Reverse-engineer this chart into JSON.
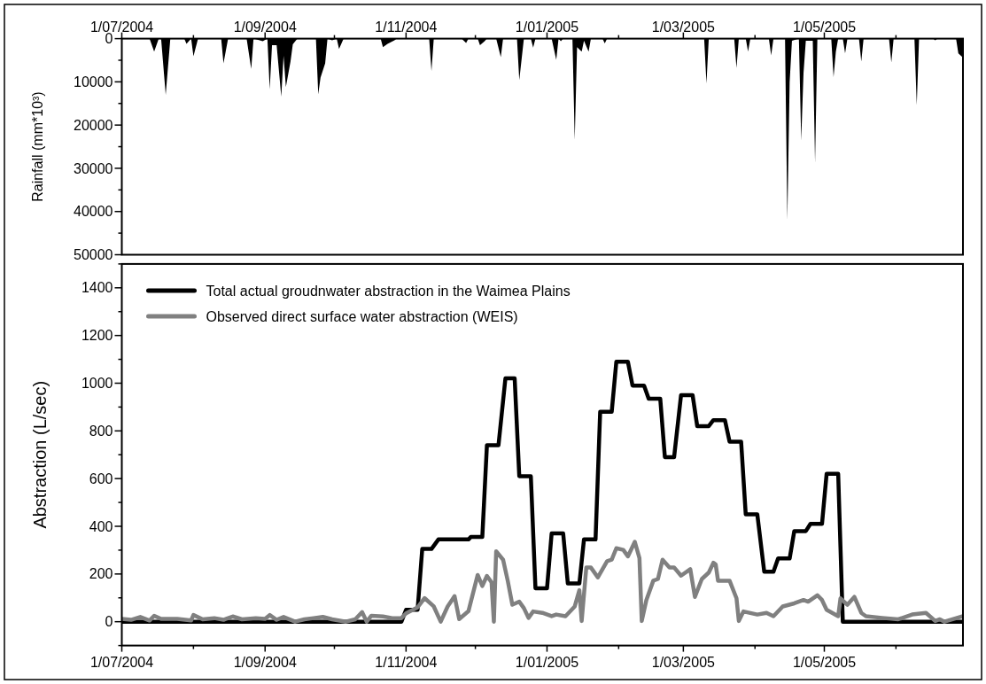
{
  "chart_data": [
    {
      "type": "area",
      "ylabel": "Rainfall (mm*10³)",
      "xlim": [
        "2004-07-01",
        "2005-06-30"
      ],
      "ylim": [
        50000,
        0
      ],
      "yticks": [
        0,
        {
          "value": 5000,
          "label": null
        },
        10000,
        {
          "value": 15000,
          "label": null
        },
        20000,
        {
          "value": 25000,
          "label": null
        },
        30000,
        {
          "value": 35000,
          "label": null
        },
        40000,
        {
          "value": 45000,
          "label": null
        },
        50000
      ],
      "xticks": [
        {
          "value": "2004-07-01",
          "label": "1/07/2004"
        },
        {
          "value": "2004-08-01",
          "label": null
        },
        {
          "value": "2004-09-01",
          "label": "1/09/2004"
        },
        {
          "value": "2004-10-01",
          "label": null
        },
        {
          "value": "2004-11-01",
          "label": "1/11/2004"
        },
        {
          "value": "2004-12-01",
          "label": null
        },
        {
          "value": "2005-01-01",
          "label": "1/01/2005"
        },
        {
          "value": "2005-02-01",
          "label": null
        },
        {
          "value": "2005-03-01",
          "label": "1/03/2005"
        },
        {
          "value": "2005-04-01",
          "label": null
        },
        {
          "value": "2005-05-01",
          "label": "1/05/2005"
        },
        {
          "value": "2005-06-01",
          "label": null
        }
      ],
      "series": [
        {
          "color": "#000000",
          "x": [
            "2004-07-01",
            "2004-07-13",
            "2004-07-15",
            "2004-07-17",
            "2004-07-18",
            "2004-07-20",
            "2004-07-22",
            "2004-07-28",
            "2004-07-29",
            "2004-07-31",
            "2004-08-01",
            "2004-08-03",
            "2004-08-13",
            "2004-08-14",
            "2004-08-16",
            "2004-08-24",
            "2004-08-26",
            "2004-08-27",
            "2004-08-31",
            "2004-09-02",
            "2004-09-03",
            "2004-09-04",
            "2004-09-06",
            "2004-09-08",
            "2004-09-09",
            "2004-09-10",
            "2004-09-12",
            "2004-09-13",
            "2004-09-15",
            "2004-09-23",
            "2004-09-24",
            "2004-09-25",
            "2004-09-27",
            "2004-09-28",
            "2004-09-30",
            "2004-10-02",
            "2004-10-03",
            "2004-10-05",
            "2004-10-07",
            "2004-10-21",
            "2004-10-22",
            "2004-10-24",
            "2004-10-27",
            "2004-10-28",
            "2004-11-11",
            "2004-11-12",
            "2004-11-13",
            "2004-11-25",
            "2004-11-27",
            "2004-11-28",
            "2004-12-02",
            "2004-12-03",
            "2004-12-05",
            "2004-12-06",
            "2004-12-10",
            "2004-12-12",
            "2004-12-13",
            "2004-12-19",
            "2004-12-20",
            "2004-12-22",
            "2004-12-25",
            "2004-12-26",
            "2004-12-27",
            "2005-01-03",
            "2005-01-05",
            "2005-01-06",
            "2005-01-07",
            "2005-01-08",
            "2005-01-12",
            "2005-01-13",
            "2005-01-14",
            "2005-01-16",
            "2005-01-17",
            "2005-01-19",
            "2005-01-20",
            "2005-01-25",
            "2005-01-26",
            "2005-01-27",
            "2005-03-10",
            "2005-03-11",
            "2005-03-12",
            "2005-03-23",
            "2005-03-24",
            "2005-03-25",
            "2005-03-28",
            "2005-03-29",
            "2005-03-30",
            "2005-04-07",
            "2005-04-08",
            "2005-04-09",
            "2005-04-14",
            "2005-04-15",
            "2005-04-16",
            "2005-04-17",
            "2005-04-20",
            "2005-04-21",
            "2005-04-22",
            "2005-04-23",
            "2005-04-26",
            "2005-04-27",
            "2005-04-28",
            "2005-05-04",
            "2005-05-05",
            "2005-05-06",
            "2005-05-07",
            "2005-05-09",
            "2005-05-10",
            "2005-05-11",
            "2005-05-16",
            "2005-05-17",
            "2005-05-18",
            "2005-05-29",
            "2005-05-30",
            "2005-05-31",
            "2005-06-09",
            "2005-06-10",
            "2005-06-11",
            "2005-06-17",
            "2005-06-18",
            "2005-06-19",
            "2005-06-27",
            "2005-06-28",
            "2005-06-30"
          ],
          "values": [
            0,
            0,
            3000,
            0,
            0,
            13000,
            0,
            0,
            1200,
            0,
            4100,
            0,
            0,
            5700,
            0,
            0,
            7000,
            0,
            600,
            0,
            11700,
            1500,
            1500,
            13400,
            4000,
            11200,
            5300,
            1300,
            0,
            0,
            12900,
            9000,
            5700,
            0,
            400,
            0,
            2400,
            0,
            0,
            0,
            2000,
            1200,
            400,
            0,
            0,
            7500,
            0,
            0,
            1000,
            0,
            0,
            1500,
            600,
            0,
            0,
            4300,
            0,
            0,
            9600,
            0,
            0,
            2100,
            0,
            0,
            4900,
            0,
            600,
            0,
            0,
            23400,
            2000,
            3000,
            500,
            3000,
            0,
            0,
            1100,
            0,
            0,
            10400,
            0,
            0,
            6800,
            0,
            0,
            3000,
            0,
            0,
            3900,
            0,
            0,
            42000,
            10000,
            500,
            0,
            23600,
            8000,
            500,
            500,
            28800,
            0,
            0,
            8900,
            3000,
            0,
            0,
            3400,
            0,
            0,
            5300,
            0,
            0,
            5500,
            0,
            0,
            15400,
            0,
            0,
            400,
            0,
            0,
            3400,
            4400
          ]
        }
      ]
    },
    {
      "type": "line",
      "ylabel": "Abstraction (L/sec)",
      "legend": "top left",
      "line_style": "solid",
      "xlim": [
        "2004-07-01",
        "2005-06-30"
      ],
      "ylim": [
        -100,
        1500
      ],
      "yticks": [
        {
          "value": -100,
          "label": null
        },
        0,
        {
          "value": 100,
          "label": null
        },
        200,
        {
          "value": 300,
          "label": null
        },
        400,
        {
          "value": 500,
          "label": null
        },
        600,
        {
          "value": 700,
          "label": null
        },
        800,
        {
          "value": 900,
          "label": null
        },
        1000,
        {
          "value": 1100,
          "label": null
        },
        1200,
        {
          "value": 1300,
          "label": null
        },
        1400,
        {
          "value": 1500,
          "label": null
        }
      ],
      "xticks": [
        {
          "value": "2004-07-01",
          "label": "1/07/2004"
        },
        {
          "value": "2004-08-01",
          "label": null
        },
        {
          "value": "2004-09-01",
          "label": "1/09/2004"
        },
        {
          "value": "2004-10-01",
          "label": null
        },
        {
          "value": "2004-11-01",
          "label": "1/11/2004"
        },
        {
          "value": "2004-12-01",
          "label": null
        },
        {
          "value": "2005-01-01",
          "label": "1/01/2005"
        },
        {
          "value": "2005-02-01",
          "label": null
        },
        {
          "value": "2005-03-01",
          "label": "1/03/2005"
        },
        {
          "value": "2005-04-01",
          "label": null
        },
        {
          "value": "2005-05-01",
          "label": "1/05/2005"
        },
        {
          "value": "2005-06-01",
          "label": null
        }
      ],
      "series": [
        {
          "name": "Total actual groudnwater abstraction in the Waimea Plains",
          "color": "#000000",
          "x": [
            "2004-07-01",
            "2004-10-30",
            "2004-11-01",
            "2004-11-06",
            "2004-11-08",
            "2004-11-12",
            "2004-11-15",
            "2004-11-28",
            "2004-11-29",
            "2004-12-04",
            "2004-12-06",
            "2004-12-11",
            "2004-12-14",
            "2004-12-18",
            "2004-12-20",
            "2004-12-25",
            "2004-12-27",
            "2005-01-01",
            "2005-01-03",
            "2005-01-08",
            "2005-01-10",
            "2005-01-15",
            "2005-01-17",
            "2005-01-22",
            "2005-01-24",
            "2005-01-29",
            "2005-01-31",
            "2005-02-05",
            "2005-02-07",
            "2005-02-12",
            "2005-02-14",
            "2005-02-19",
            "2005-02-21",
            "2005-02-25",
            "2005-02-28",
            "2005-03-05",
            "2005-03-07",
            "2005-03-12",
            "2005-03-14",
            "2005-03-19",
            "2005-03-21",
            "2005-03-26",
            "2005-03-28",
            "2005-04-02",
            "2005-04-05",
            "2005-04-09",
            "2005-04-11",
            "2005-04-16",
            "2005-04-18",
            "2005-04-23",
            "2005-04-25",
            "2005-04-30",
            "2005-05-02",
            "2005-05-07",
            "2005-05-09",
            "2005-06-30"
          ],
          "values": [
            0,
            0,
            50,
            50,
            305,
            305,
            345,
            345,
            355,
            355,
            740,
            740,
            1020,
            1020,
            610,
            610,
            140,
            140,
            370,
            370,
            160,
            160,
            345,
            345,
            880,
            880,
            1090,
            1090,
            990,
            990,
            935,
            935,
            690,
            690,
            950,
            950,
            820,
            820,
            845,
            845,
            755,
            755,
            450,
            450,
            210,
            210,
            265,
            265,
            380,
            380,
            410,
            410,
            620,
            620,
            0,
            0
          ]
        },
        {
          "name": "Observed direct surface water abstraction (WEIS)",
          "color": "#808080",
          "x": [
            "2004-07-01",
            "2004-07-05",
            "2004-07-09",
            "2004-07-13",
            "2004-07-15",
            "2004-07-18",
            "2004-07-25",
            "2004-07-31",
            "2004-08-01",
            "2004-08-05",
            "2004-08-10",
            "2004-08-14",
            "2004-08-18",
            "2004-08-22",
            "2004-08-28",
            "2004-09-01",
            "2004-09-03",
            "2004-09-06",
            "2004-09-09",
            "2004-09-14",
            "2004-09-18",
            "2004-09-22",
            "2004-09-26",
            "2004-09-30",
            "2004-10-06",
            "2004-10-10",
            "2004-10-13",
            "2004-10-15",
            "2004-10-17",
            "2004-10-22",
            "2004-10-26",
            "2004-10-30",
            "2004-11-01",
            "2004-11-06",
            "2004-11-09",
            "2004-11-13",
            "2004-11-16",
            "2004-11-19",
            "2004-11-22",
            "2004-11-24",
            "2004-11-28",
            "2004-12-02",
            "2004-12-04",
            "2004-12-06",
            "2004-12-08",
            "2004-12-09",
            "2004-12-10",
            "2004-12-13",
            "2004-12-15",
            "2004-12-17",
            "2004-12-20",
            "2004-12-22",
            "2004-12-24",
            "2004-12-26",
            "2004-12-30",
            "2005-01-03",
            "2005-01-05",
            "2005-01-09",
            "2005-01-13",
            "2005-01-15",
            "2005-01-16",
            "2005-01-18",
            "2005-01-20",
            "2005-01-23",
            "2005-01-27",
            "2005-01-29",
            "2005-01-31",
            "2005-02-03",
            "2005-02-05",
            "2005-02-08",
            "2005-02-10",
            "2005-02-11",
            "2005-02-13",
            "2005-02-16",
            "2005-02-18",
            "2005-02-20",
            "2005-02-23",
            "2005-02-25",
            "2005-02-28",
            "2005-03-04",
            "2005-03-06",
            "2005-03-09",
            "2005-03-12",
            "2005-03-14",
            "2005-03-15",
            "2005-03-16",
            "2005-03-21",
            "2005-03-24",
            "2005-03-25",
            "2005-03-27",
            "2005-04-02",
            "2005-04-06",
            "2005-04-09",
            "2005-04-13",
            "2005-04-18",
            "2005-04-22",
            "2005-04-24",
            "2005-04-28",
            "2005-04-30",
            "2005-05-02",
            "2005-05-07",
            "2005-05-08",
            "2005-05-11",
            "2005-05-14",
            "2005-05-17",
            "2005-05-19",
            "2005-05-26",
            "2005-06-02",
            "2005-06-08",
            "2005-06-14",
            "2005-06-18",
            "2005-06-20",
            "2005-06-22",
            "2005-06-30"
          ],
          "values": [
            12,
            8,
            20,
            5,
            25,
            12,
            12,
            5,
            28,
            10,
            15,
            8,
            22,
            10,
            15,
            12,
            28,
            8,
            20,
            0,
            10,
            15,
            20,
            10,
            0,
            10,
            40,
            0,
            25,
            22,
            15,
            15,
            35,
            60,
            99,
            64,
            0,
            64,
            107,
            11,
            44,
            196,
            150,
            192,
            165,
            0,
            295,
            260,
            172,
            71,
            84,
            57,
            16,
            43,
            37,
            23,
            30,
            23,
            64,
            132,
            3,
            227,
            227,
            186,
            254,
            260,
            308,
            301,
            274,
            335,
            267,
            3,
            91,
            172,
            179,
            260,
            227,
            227,
            193,
            220,
            104,
            179,
            206,
            247,
            240,
            172,
            172,
            98,
            3,
            43,
            30,
            37,
            23,
            64,
            77,
            91,
            84,
            111,
            91,
            50,
            23,
            98,
            71,
            104,
            37,
            23,
            16,
            10,
            30,
            37,
            3,
            10,
            0,
            23
          ]
        }
      ]
    }
  ]
}
